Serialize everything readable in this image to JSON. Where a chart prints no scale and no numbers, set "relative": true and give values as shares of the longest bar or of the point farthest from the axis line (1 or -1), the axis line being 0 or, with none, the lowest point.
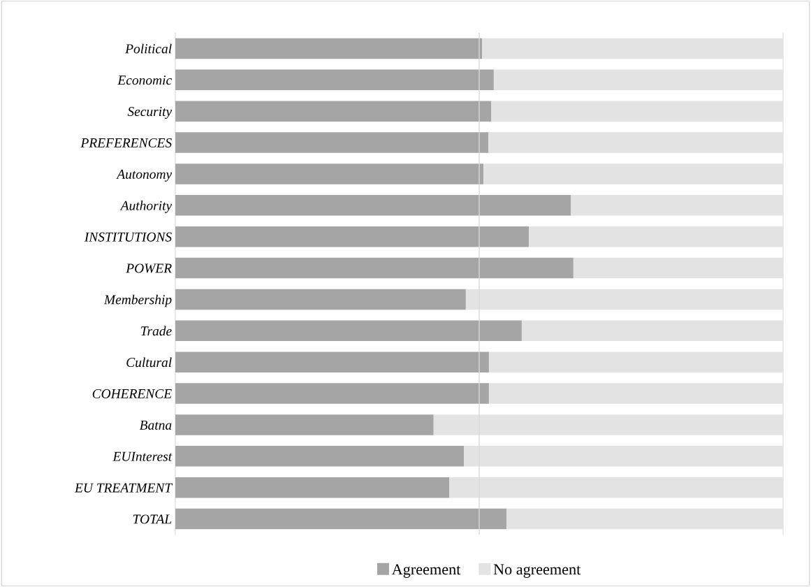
{
  "chart_data": {
    "type": "bar",
    "orientation": "horizontal",
    "stacked": true,
    "relative": true,
    "legend": "bottom",
    "ref_lines": [
      {
        "axis": "x",
        "value": 0.5,
        "color": "#d9d9d9"
      }
    ],
    "categories": [
      "Political",
      "Economic",
      "Security",
      "PREFERENCES",
      "Autonomy",
      "Authority",
      "INSTITUTIONS",
      "POWER",
      "Membership",
      "Trade",
      "Cultural",
      "COHERENCE",
      "Batna",
      "EUInterest",
      "EU TREATMENT",
      "TOTAL"
    ],
    "series": [
      {
        "name": "Agreement",
        "color": "#a5a5a5",
        "values": [
          0.505,
          0.524,
          0.52,
          0.515,
          0.507,
          0.651,
          0.582,
          0.655,
          0.478,
          0.57,
          0.516,
          0.516,
          0.425,
          0.475,
          0.451,
          0.545
        ]
      },
      {
        "name": "No agreement",
        "color": "#e3e3e3",
        "values": [
          0.495,
          0.476,
          0.48,
          0.485,
          0.493,
          0.349,
          0.418,
          0.345,
          0.522,
          0.43,
          0.484,
          0.484,
          0.575,
          0.525,
          0.549,
          0.455
        ]
      }
    ]
  }
}
